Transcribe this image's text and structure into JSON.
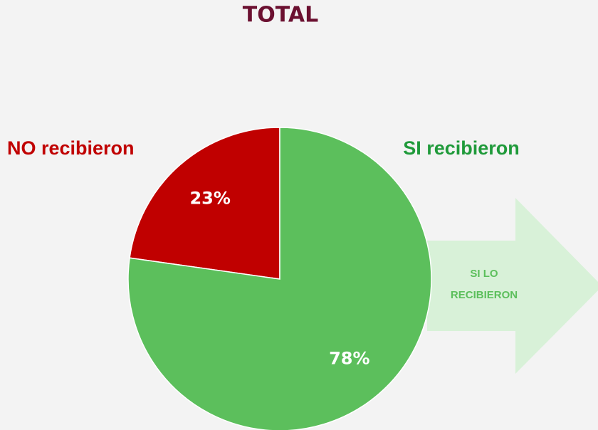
{
  "chart_data": {
    "type": "pie",
    "title": "TOTAL",
    "categories": [
      "NO recibieron",
      "SI recibieron"
    ],
    "values": [
      23,
      78
    ],
    "value_labels": [
      "23%",
      "78%"
    ],
    "colors": [
      "#c00000",
      "#5cbf5c"
    ],
    "annotation": [
      "SI LO",
      "RECIBIERON"
    ]
  }
}
